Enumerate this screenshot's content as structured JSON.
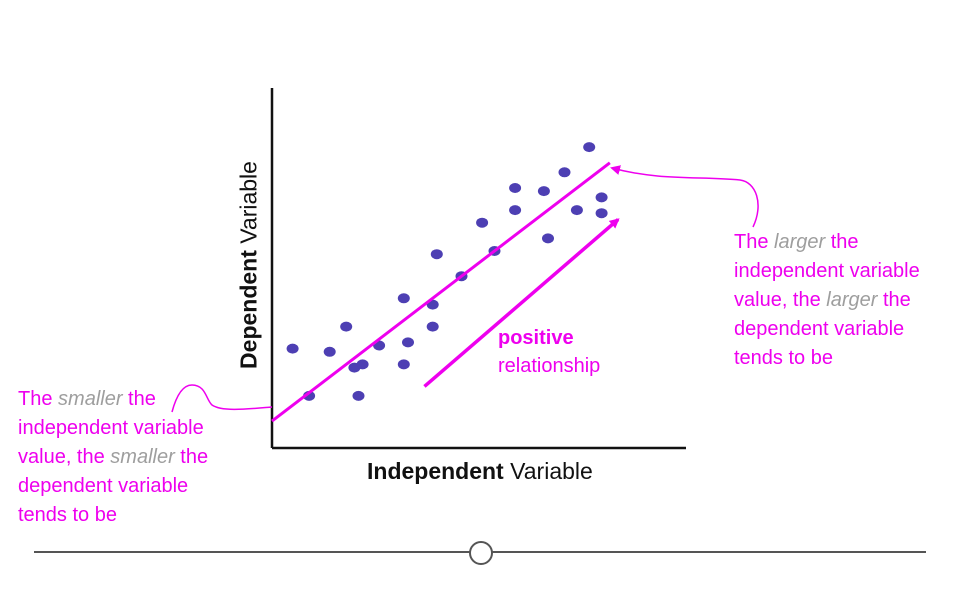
{
  "chart_data": {
    "type": "scatter",
    "xlabel_bold": "Independent",
    "xlabel_rest": " Variable",
    "ylabel_bold": "Dependent",
    "ylabel_rest": " Variable",
    "xlim": [
      0,
      100
    ],
    "ylim": [
      0,
      100
    ],
    "grid": false,
    "legend": "none",
    "points": [
      {
        "x": 5,
        "y": 29
      },
      {
        "x": 9,
        "y": 14
      },
      {
        "x": 14,
        "y": 28
      },
      {
        "x": 18,
        "y": 36
      },
      {
        "x": 20,
        "y": 23
      },
      {
        "x": 21,
        "y": 14
      },
      {
        "x": 22,
        "y": 24
      },
      {
        "x": 26,
        "y": 30
      },
      {
        "x": 32,
        "y": 45
      },
      {
        "x": 32,
        "y": 24
      },
      {
        "x": 33,
        "y": 31
      },
      {
        "x": 39,
        "y": 36
      },
      {
        "x": 39,
        "y": 43
      },
      {
        "x": 40,
        "y": 59
      },
      {
        "x": 46,
        "y": 52
      },
      {
        "x": 51,
        "y": 69
      },
      {
        "x": 54,
        "y": 60
      },
      {
        "x": 59,
        "y": 73
      },
      {
        "x": 59,
        "y": 80
      },
      {
        "x": 67,
        "y": 64
      },
      {
        "x": 66,
        "y": 79
      },
      {
        "x": 71,
        "y": 85
      },
      {
        "x": 74,
        "y": 73
      },
      {
        "x": 77,
        "y": 93
      },
      {
        "x": 80,
        "y": 77
      },
      {
        "x": 80,
        "y": 72
      }
    ],
    "trend_line": {
      "x": [
        0,
        82
      ],
      "y": [
        6,
        88
      ]
    },
    "arrow": {
      "x": [
        37,
        84
      ],
      "y": [
        17,
        70
      ]
    },
    "colors": {
      "points": "#4d3fb3",
      "accent": "#ee00ee",
      "axis": "#111111",
      "muted": "#9e9e9e"
    }
  },
  "arrow_label": {
    "line1": "positive",
    "line2": "relationship"
  },
  "annotation_left": {
    "p1": "The ",
    "e1": "smaller",
    "p2": " the independent variable value, the ",
    "e2": "smaller",
    "p3": " the dependent variable tends to be"
  },
  "annotation_right": {
    "p1": "The ",
    "e1": "larger",
    "p2": " the independent variable value, the ",
    "e2": "larger",
    "p3": " the dependent variable tends to be"
  },
  "slider": {
    "position": 0.5
  }
}
